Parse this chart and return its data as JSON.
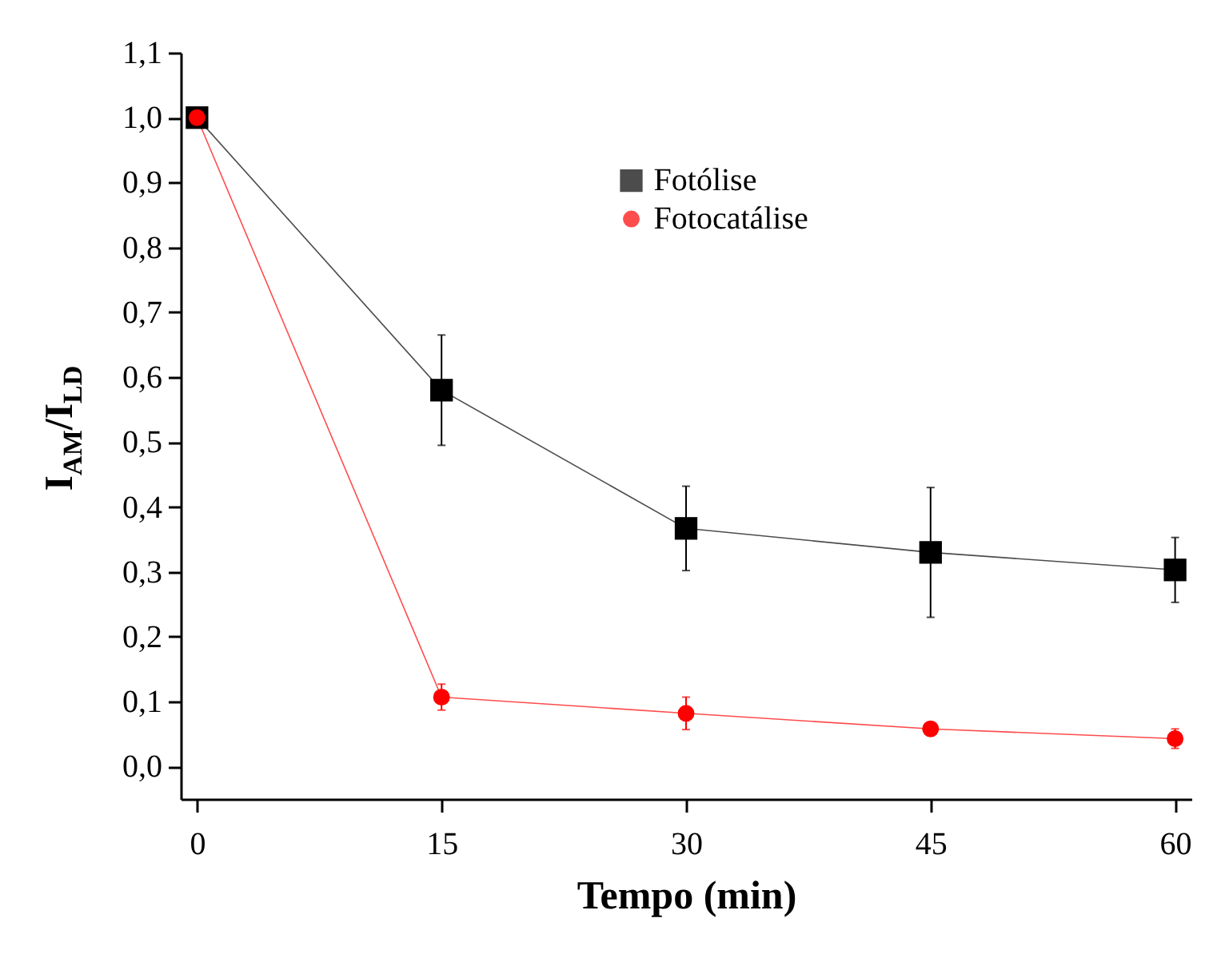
{
  "chart_data": {
    "type": "line",
    "xlabel": "Tempo (min)",
    "ylabel": "I$_{AM}$/I$_{LD}$",
    "x": [
      0,
      15,
      30,
      45,
      60
    ],
    "series": [
      {
        "name": "Fotólise",
        "color": "#000000",
        "marker": "square",
        "values": [
          1.0,
          0.58,
          0.367,
          0.33,
          0.303
        ],
        "errors": [
          null,
          0.085,
          0.065,
          0.1,
          0.05
        ]
      },
      {
        "name": "Fotocatálise",
        "color": "#ff0000",
        "marker": "circle",
        "values": [
          1.0,
          0.107,
          0.082,
          0.058,
          0.043
        ],
        "errors": [
          null,
          0.02,
          0.025,
          null,
          0.015
        ]
      }
    ],
    "xlim": [
      -1,
      61
    ],
    "xticks": [
      0,
      15,
      30,
      45,
      60
    ],
    "ylim": [
      -0.05,
      1.1
    ],
    "yticks": [
      {
        "value": 0,
        "label": "0,0"
      },
      {
        "value": 0.1,
        "label": "0,1"
      },
      {
        "value": 0.2,
        "label": "0,2"
      },
      {
        "value": 0.3,
        "label": "0,3"
      },
      {
        "value": 0.4,
        "label": "0,4"
      },
      {
        "value": 0.5,
        "label": "0,5"
      },
      {
        "value": 0.6,
        "label": "0,6"
      },
      {
        "value": 0.7,
        "label": "0,7"
      },
      {
        "value": 0.8,
        "label": "0,8"
      },
      {
        "value": 0.9,
        "label": "0,9"
      },
      {
        "value": 1.0,
        "label": "1,0"
      },
      {
        "value": 1.1,
        "label": "1,1"
      }
    ],
    "grid": false,
    "legend": "top right"
  }
}
